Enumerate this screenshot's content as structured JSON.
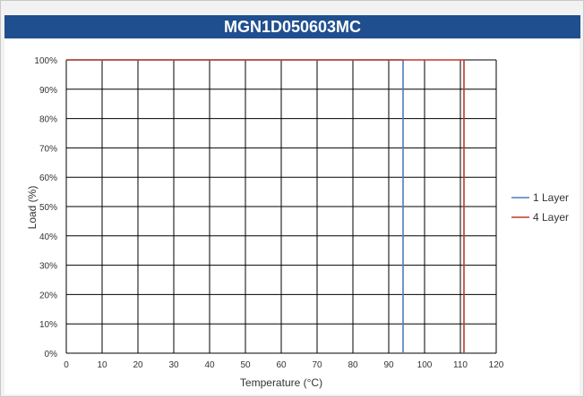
{
  "title": "MGN1D050603MC",
  "chart_data": {
    "type": "line",
    "title": "MGN1D050603MC",
    "xlabel": "Temperature (°C)",
    "ylabel": "Load (%)",
    "xlim": [
      0,
      120
    ],
    "ylim": [
      0,
      100
    ],
    "x_ticks": [
      "0",
      "10",
      "20",
      "30",
      "40",
      "50",
      "60",
      "70",
      "80",
      "90",
      "100",
      "110",
      "120"
    ],
    "y_ticks": [
      "0%",
      "10%",
      "20%",
      "30%",
      "40%",
      "50%",
      "60%",
      "70%",
      "80%",
      "90%",
      "100%"
    ],
    "grid": true,
    "legend_position": "right",
    "series": [
      {
        "name": "1 Layer",
        "color": "#4a7ebb",
        "x": [
          0,
          94,
          94
        ],
        "y": [
          100,
          100,
          0
        ]
      },
      {
        "name": "4 Layer",
        "color": "#c0392b",
        "x": [
          0,
          111,
          111
        ],
        "y": [
          100,
          100,
          0
        ]
      }
    ]
  },
  "colors": {
    "title_bar": "#1f4f8f",
    "grid": "#000000"
  }
}
